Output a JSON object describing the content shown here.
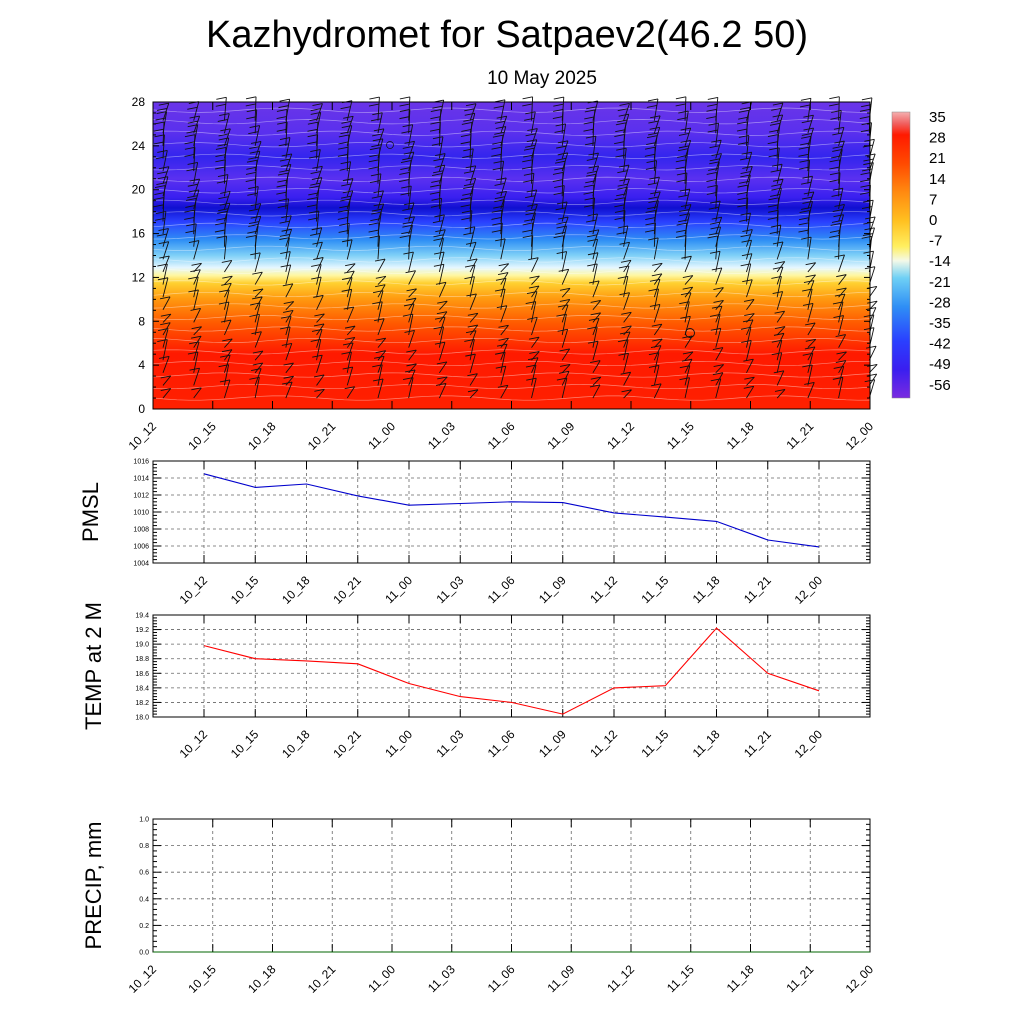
{
  "title": "Kazhydromet for Satpaev2(46.2 50)",
  "subtitle": "10 May 2025",
  "colorbar_labels": [
    "35",
    "28",
    "21",
    "14",
    "7",
    "0",
    "-7",
    "-14",
    "-21",
    "-28",
    "-35",
    "-42",
    "-49",
    "-56"
  ],
  "chart_data": [
    {
      "type": "heatmap",
      "name_hint": "vertical cross-section of temperature with wind barbs",
      "x_categories": [
        "10_12",
        "10_15",
        "10_18",
        "10_21",
        "11_00",
        "11_03",
        "11_06",
        "11_09",
        "11_12",
        "11_15",
        "11_18",
        "11_21",
        "12_00"
      ],
      "y_ticks": [
        0,
        4,
        8,
        12,
        16,
        20,
        24,
        28
      ],
      "ylim": [
        0,
        28
      ],
      "color_scale": {
        "min": -56,
        "max": 35,
        "low_color": "#7a2be0",
        "high_color": "#ff1a00"
      },
      "temperature_by_level": [
        {
          "level": 0,
          "value": 28
        },
        {
          "level": 4,
          "value": 30
        },
        {
          "level": 8,
          "value": 22
        },
        {
          "level": 10,
          "value": 14
        },
        {
          "level": 12,
          "value": 3
        },
        {
          "level": 13,
          "value": -10
        },
        {
          "level": 14,
          "value": -20
        },
        {
          "level": 16,
          "value": -35
        },
        {
          "level": 18,
          "value": -56
        },
        {
          "level": 20,
          "value": -50
        },
        {
          "level": 24,
          "value": -55
        },
        {
          "level": 28,
          "value": -48
        }
      ]
    },
    {
      "type": "line",
      "ylabel": "PMSL",
      "x_categories": [
        "10_12",
        "10_15",
        "10_18",
        "10_21",
        "11_00",
        "11_03",
        "11_06",
        "11_09",
        "11_12",
        "11_15",
        "11_18",
        "11_21",
        "12_00"
      ],
      "values": [
        1014.5,
        1012.9,
        1013.3,
        1011.9,
        1010.8,
        1011.0,
        1011.2,
        1011.1,
        1009.9,
        1009.4,
        1008.9,
        1006.7,
        1005.9
      ],
      "ylim": [
        1004,
        1016
      ],
      "y_ticks": [
        "1004",
        "1006",
        "1008",
        "1010",
        "1012",
        "1014",
        "1016"
      ],
      "line_color": "#0000cc",
      "grid": true
    },
    {
      "type": "line",
      "ylabel": "TEMP at 2 M",
      "x_categories": [
        "10_12",
        "10_15",
        "10_18",
        "10_21",
        "11_00",
        "11_03",
        "11_06",
        "11_09",
        "11_12",
        "11_15",
        "11_18",
        "11_21",
        "12_00"
      ],
      "values": [
        18.98,
        18.8,
        18.77,
        18.73,
        18.46,
        18.28,
        18.2,
        18.04,
        18.4,
        18.43,
        19.22,
        18.6,
        18.36
      ],
      "ylim": [
        18.0,
        19.4
      ],
      "y_ticks": [
        "18.0",
        "18.2",
        "18.4",
        "18.6",
        "18.8",
        "19.0",
        "19.2",
        "19.4"
      ],
      "line_color": "#ff0000",
      "grid": true
    },
    {
      "type": "line",
      "ylabel": "PRECIP, mm",
      "x_categories": [
        "10_12",
        "10_15",
        "10_18",
        "10_21",
        "11_00",
        "11_03",
        "11_06",
        "11_09",
        "11_12",
        "11_15",
        "11_18",
        "11_21",
        "12_00"
      ],
      "values": [
        0,
        0,
        0,
        0,
        0,
        0,
        0,
        0,
        0,
        0,
        0,
        0,
        0
      ],
      "ylim": [
        0,
        1
      ],
      "y_ticks": [
        "0.0",
        "0.2",
        "0.4",
        "0.6",
        "0.8",
        "1.0"
      ],
      "line_color": "#006400",
      "grid": true
    }
  ]
}
